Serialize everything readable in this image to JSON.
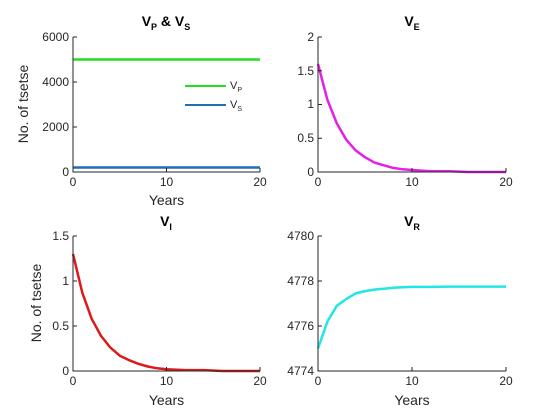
{
  "chart_data": [
    {
      "type": "line",
      "title_main": "V",
      "title_sub1": "P",
      "title_mid": " & V",
      "title_sub2": "S",
      "xlabel": "Years",
      "ylabel": "No. of tsetse",
      "xlim": [
        0,
        20
      ],
      "ylim": [
        0,
        6000
      ],
      "xticks": [
        "0",
        "10",
        "20"
      ],
      "yticks": [
        "0",
        "2000",
        "4000",
        "6000"
      ],
      "legend_position": "top-right",
      "series": [
        {
          "name_main": "V",
          "name_sub": "P",
          "color": "#22dd22",
          "x": [
            0,
            20
          ],
          "y": [
            5000,
            5000
          ]
        },
        {
          "name_main": "V",
          "name_sub": "S",
          "color": "#1f6fb4",
          "x": [
            0,
            20
          ],
          "y": [
            200,
            200
          ]
        }
      ]
    },
    {
      "type": "line",
      "title_main": "V",
      "title_sub": "E",
      "xlabel": "",
      "ylabel": "",
      "xlim": [
        0,
        20
      ],
      "ylim": [
        0,
        2
      ],
      "xticks": [
        "0",
        "10",
        "20"
      ],
      "yticks": [
        "0",
        "0.5",
        "1",
        "1.5",
        "2"
      ],
      "series": [
        {
          "color": "#e61ee6",
          "x": [
            0,
            1,
            2,
            3,
            4,
            5,
            6,
            7,
            8,
            9,
            10,
            12,
            14,
            16,
            18,
            20
          ],
          "y": [
            1.6,
            1.07,
            0.72,
            0.48,
            0.32,
            0.22,
            0.14,
            0.1,
            0.06,
            0.04,
            0.03,
            0.01,
            0.01,
            0.0,
            0.0,
            0.0
          ]
        }
      ]
    },
    {
      "type": "line",
      "title_main": "V",
      "title_sub": "I",
      "xlabel": "Years",
      "ylabel": "No. of tsetse",
      "xlim": [
        0,
        20
      ],
      "ylim": [
        0,
        1.5
      ],
      "xticks": [
        "0",
        "10",
        "20"
      ],
      "yticks": [
        "0",
        "0.5",
        "1",
        "1.5"
      ],
      "series": [
        {
          "color": "#dd1a1a",
          "x": [
            0,
            1,
            2,
            3,
            4,
            5,
            6,
            7,
            8,
            9,
            10,
            12,
            14,
            16,
            18,
            20
          ],
          "y": [
            1.3,
            0.87,
            0.58,
            0.39,
            0.26,
            0.17,
            0.12,
            0.08,
            0.05,
            0.03,
            0.02,
            0.01,
            0.01,
            0.0,
            0.0,
            0.0
          ]
        }
      ]
    },
    {
      "type": "line",
      "title_main": "V",
      "title_sub": "R",
      "xlabel": "Years",
      "ylabel": "",
      "xlim": [
        0,
        20
      ],
      "ylim": [
        4774,
        4780
      ],
      "xticks": [
        "0",
        "10",
        "20"
      ],
      "yticks": [
        "4774",
        "4776",
        "4778",
        "4780"
      ],
      "series": [
        {
          "color": "#22e6e6",
          "x": [
            0,
            1,
            2,
            3,
            4,
            5,
            6,
            7,
            8,
            9,
            10,
            12,
            14,
            16,
            18,
            20
          ],
          "y": [
            4775.0,
            4776.2,
            4776.9,
            4777.2,
            4777.45,
            4777.55,
            4777.62,
            4777.66,
            4777.7,
            4777.72,
            4777.74,
            4777.74,
            4777.75,
            4777.75,
            4777.75,
            4777.75
          ]
        }
      ]
    }
  ]
}
